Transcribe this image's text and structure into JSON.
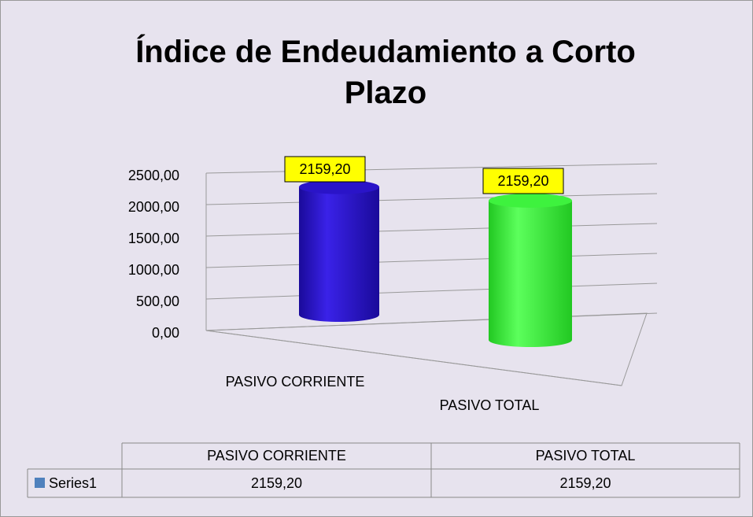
{
  "chart_data": {
    "type": "bar",
    "title": "Índice de Endeudamiento a Corto Plazo",
    "categories": [
      "PASIVO CORRIENTE",
      "PASIVO TOTAL"
    ],
    "series": [
      {
        "name": "Series1",
        "color": "#4f81bd",
        "point_colors": [
          "#2a14c8",
          "#3ef23e"
        ],
        "values": [
          2159.2,
          2159.2
        ],
        "value_labels": [
          "2159,20",
          "2159,20"
        ]
      }
    ],
    "ylim": [
      0,
      2500
    ],
    "yticks": [
      {
        "value": 0,
        "label": "0,00"
      },
      {
        "value": 500,
        "label": "500,00"
      },
      {
        "value": 1000,
        "label": "1000,00"
      },
      {
        "value": 1500,
        "label": "1500,00"
      },
      {
        "value": 2000,
        "label": "2000,00"
      },
      {
        "value": 2500,
        "label": "2500,00"
      }
    ],
    "grid": true,
    "data_table": true
  }
}
